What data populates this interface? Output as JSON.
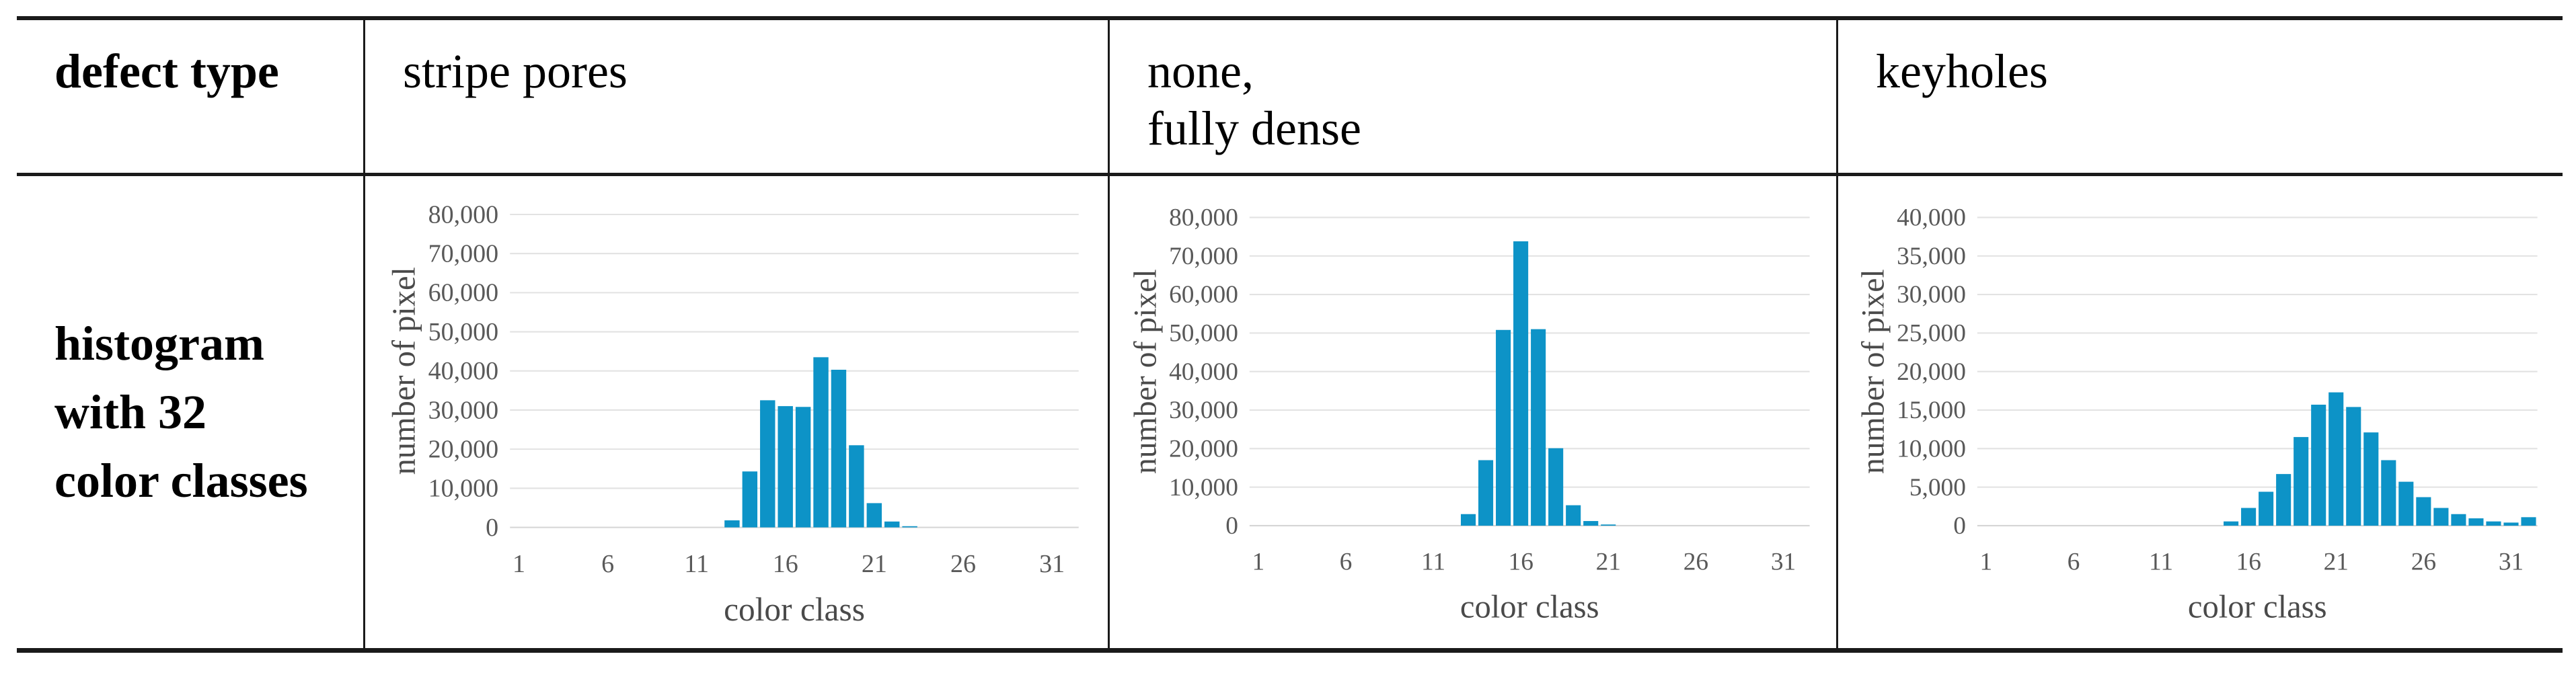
{
  "table": {
    "header": {
      "col1": "defect type",
      "col2": "stripe pores",
      "col3_line1": "none,",
      "col3_line2": "fully dense",
      "col4": "keyholes"
    },
    "row_label_lines": [
      "histogram",
      "with 32",
      "color classes"
    ]
  },
  "colors": {
    "bar_fill": "#0d93c7",
    "gridline": "#e2e2e2",
    "baseline": "#d5d5d5",
    "tick_text": "#595959",
    "axis_title_text": "#4a4a4a",
    "table_rule": "#1a1a1a"
  },
  "chart_data": [
    {
      "type": "bar",
      "title": "stripe pores",
      "xlabel": "color class",
      "ylabel": "number of pixel",
      "ylim": [
        0,
        80000
      ],
      "ytick_step": 10000,
      "xticks": [
        1,
        6,
        11,
        16,
        21,
        26,
        31
      ],
      "categories": [
        1,
        2,
        3,
        4,
        5,
        6,
        7,
        8,
        9,
        10,
        11,
        12,
        13,
        14,
        15,
        16,
        17,
        18,
        19,
        20,
        21,
        22,
        23,
        24,
        25,
        26,
        27,
        28,
        29,
        30,
        31,
        32
      ],
      "values": [
        0,
        0,
        0,
        0,
        0,
        0,
        0,
        0,
        0,
        0,
        0,
        0,
        1800,
        14300,
        32500,
        31000,
        30800,
        43500,
        40300,
        21000,
        6200,
        1500,
        300,
        0,
        0,
        0,
        0,
        0,
        0,
        0,
        0,
        0
      ],
      "grid": true,
      "legend": "none"
    },
    {
      "type": "bar",
      "title": "none, fully dense",
      "xlabel": "color class",
      "ylabel": "number of pixel",
      "ylim": [
        0,
        80000
      ],
      "ytick_step": 10000,
      "xticks": [
        1,
        6,
        11,
        16,
        21,
        26,
        31
      ],
      "categories": [
        1,
        2,
        3,
        4,
        5,
        6,
        7,
        8,
        9,
        10,
        11,
        12,
        13,
        14,
        15,
        16,
        17,
        18,
        19,
        20,
        21,
        22,
        23,
        24,
        25,
        26,
        27,
        28,
        29,
        30,
        31,
        32
      ],
      "values": [
        0,
        0,
        0,
        0,
        0,
        0,
        0,
        0,
        0,
        0,
        0,
        0,
        3000,
        17000,
        50800,
        73800,
        51000,
        20100,
        5300,
        1200,
        300,
        0,
        0,
        0,
        0,
        0,
        0,
        0,
        0,
        0,
        0,
        0
      ],
      "grid": true,
      "legend": "none"
    },
    {
      "type": "bar",
      "title": "keyholes",
      "xlabel": "color class",
      "ylabel": "number of pixel",
      "ylim": [
        0,
        40000
      ],
      "ytick_step": 5000,
      "xticks": [
        1,
        6,
        11,
        16,
        21,
        26,
        31
      ],
      "categories": [
        1,
        2,
        3,
        4,
        5,
        6,
        7,
        8,
        9,
        10,
        11,
        12,
        13,
        14,
        15,
        16,
        17,
        18,
        19,
        20,
        21,
        22,
        23,
        24,
        25,
        26,
        27,
        28,
        29,
        30,
        31,
        32
      ],
      "values": [
        0,
        0,
        0,
        0,
        0,
        0,
        0,
        0,
        0,
        0,
        0,
        0,
        0,
        0,
        550,
        2300,
        4400,
        6700,
        11500,
        15700,
        17300,
        15400,
        12100,
        8500,
        5700,
        3700,
        2300,
        1500,
        950,
        550,
        400,
        1100
      ],
      "grid": true,
      "legend": "none"
    }
  ]
}
